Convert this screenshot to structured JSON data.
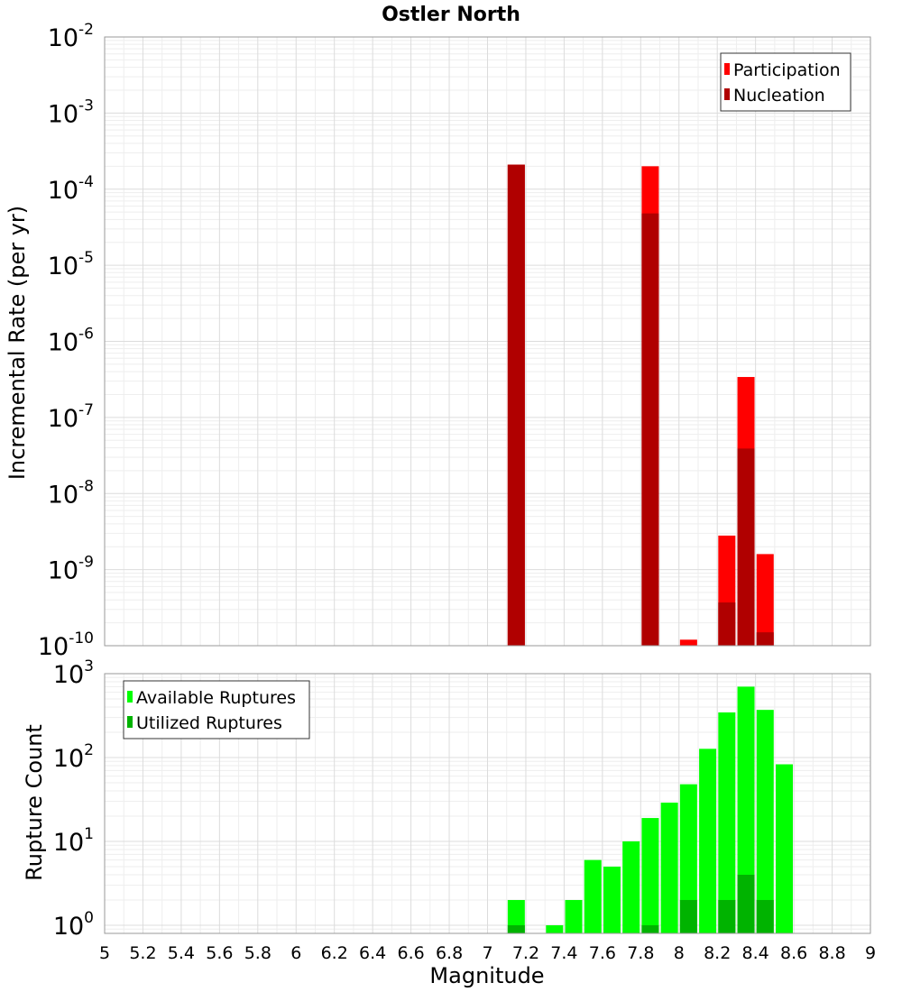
{
  "title": "Ostler North",
  "xlabel": "Magnitude",
  "colors": {
    "participation": "#ff0000",
    "nucleation": "#b00000",
    "available": "#00ff00",
    "utilized": "#00b300"
  },
  "chart_data": [
    {
      "type": "bar",
      "ylabel": "Incremental Rate (per yr)",
      "yscale": "log",
      "xlim": [
        5,
        9
      ],
      "ylim": [
        1e-10,
        0.01
      ],
      "y_ticks": [
        {
          "base": "10",
          "exp": "-10"
        },
        {
          "base": "10",
          "exp": "-9"
        },
        {
          "base": "10",
          "exp": "-8"
        },
        {
          "base": "10",
          "exp": "-7"
        },
        {
          "base": "10",
          "exp": "-6"
        },
        {
          "base": "10",
          "exp": "-5"
        },
        {
          "base": "10",
          "exp": "-4"
        },
        {
          "base": "10",
          "exp": "-3"
        },
        {
          "base": "10",
          "exp": "-2"
        }
      ],
      "legend_position": "top-right",
      "series": [
        {
          "name": "Participation",
          "color": "#ff0000",
          "points": [
            {
              "x": 7.15,
              "y": 0.00021
            },
            {
              "x": 7.85,
              "y": 0.0002
            },
            {
              "x": 8.05,
              "y": 1.2e-10
            },
            {
              "x": 8.25,
              "y": 2.8e-09
            },
            {
              "x": 8.35,
              "y": 3.4e-07
            },
            {
              "x": 8.45,
              "y": 1.6e-09
            }
          ]
        },
        {
          "name": "Nucleation",
          "color": "#b00000",
          "points": [
            {
              "x": 7.15,
              "y": 0.00021
            },
            {
              "x": 7.85,
              "y": 4.8e-05
            },
            {
              "x": 8.25,
              "y": 3.7e-10
            },
            {
              "x": 8.35,
              "y": 3.9e-08
            },
            {
              "x": 8.45,
              "y": 1.5e-10
            }
          ]
        }
      ]
    },
    {
      "type": "bar",
      "ylabel": "Rupture Count",
      "yscale": "log",
      "xlim": [
        5,
        9
      ],
      "ylim": [
        0.8,
        1000
      ],
      "y_ticks": [
        {
          "base": "10",
          "exp": "0",
          "value": 1
        },
        {
          "base": "10",
          "exp": "1",
          "value": 10
        },
        {
          "base": "10",
          "exp": "2",
          "value": 100
        },
        {
          "base": "10",
          "exp": "3",
          "value": 1000
        }
      ],
      "x_ticks": [
        "5",
        "5.2",
        "5.4",
        "5.6",
        "5.8",
        "6",
        "6.2",
        "6.4",
        "6.6",
        "6.8",
        "7",
        "7.2",
        "7.4",
        "7.6",
        "7.8",
        "8",
        "8.2",
        "8.4",
        "8.6",
        "8.8",
        "9"
      ],
      "legend_position": "top-left",
      "series": [
        {
          "name": "Available Ruptures",
          "color": "#00ff00",
          "points": [
            {
              "x": 7.15,
              "y": 2
            },
            {
              "x": 7.35,
              "y": 1
            },
            {
              "x": 7.45,
              "y": 2
            },
            {
              "x": 7.55,
              "y": 6
            },
            {
              "x": 7.65,
              "y": 5
            },
            {
              "x": 7.75,
              "y": 10
            },
            {
              "x": 7.85,
              "y": 19
            },
            {
              "x": 7.95,
              "y": 29
            },
            {
              "x": 8.05,
              "y": 48
            },
            {
              "x": 8.15,
              "y": 127
            },
            {
              "x": 8.25,
              "y": 345
            },
            {
              "x": 8.35,
              "y": 700
            },
            {
              "x": 8.45,
              "y": 370
            },
            {
              "x": 8.55,
              "y": 83
            }
          ]
        },
        {
          "name": "Utilized Ruptures",
          "color": "#00b300",
          "points": [
            {
              "x": 7.15,
              "y": 1
            },
            {
              "x": 7.85,
              "y": 1
            },
            {
              "x": 8.05,
              "y": 2
            },
            {
              "x": 8.25,
              "y": 2
            },
            {
              "x": 8.35,
              "y": 4
            },
            {
              "x": 8.45,
              "y": 2
            }
          ]
        }
      ]
    }
  ]
}
